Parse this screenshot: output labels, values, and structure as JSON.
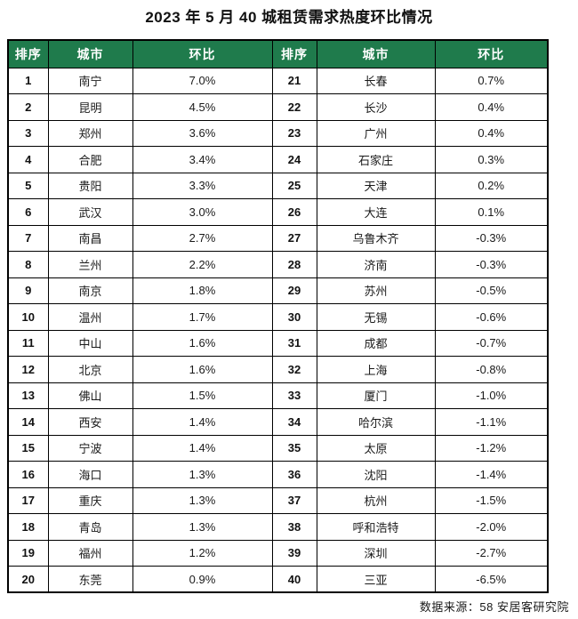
{
  "title": "2023 年 5 月 40 城租赁需求热度环比情况",
  "footer": {
    "source": "数据来源：58 安居客研究院"
  },
  "colors": {
    "header_bg": "#1f7b4c",
    "header_text": "#ffffff",
    "border": "#000000",
    "body_text": "#1a1a1a"
  },
  "table": {
    "headers": [
      "排序",
      "城市",
      "环比",
      "排序",
      "城市",
      "环比"
    ],
    "rows": [
      {
        "rank_l": "1",
        "city_l": "南宁",
        "mom_l": "7.0%",
        "rank_r": "21",
        "city_r": "长春",
        "mom_r": "0.7%"
      },
      {
        "rank_l": "2",
        "city_l": "昆明",
        "mom_l": "4.5%",
        "rank_r": "22",
        "city_r": "长沙",
        "mom_r": "0.4%"
      },
      {
        "rank_l": "3",
        "city_l": "郑州",
        "mom_l": "3.6%",
        "rank_r": "23",
        "city_r": "广州",
        "mom_r": "0.4%"
      },
      {
        "rank_l": "4",
        "city_l": "合肥",
        "mom_l": "3.4%",
        "rank_r": "24",
        "city_r": "石家庄",
        "mom_r": "0.3%"
      },
      {
        "rank_l": "5",
        "city_l": "贵阳",
        "mom_l": "3.3%",
        "rank_r": "25",
        "city_r": "天津",
        "mom_r": "0.2%"
      },
      {
        "rank_l": "6",
        "city_l": "武汉",
        "mom_l": "3.0%",
        "rank_r": "26",
        "city_r": "大连",
        "mom_r": "0.1%"
      },
      {
        "rank_l": "7",
        "city_l": "南昌",
        "mom_l": "2.7%",
        "rank_r": "27",
        "city_r": "乌鲁木齐",
        "mom_r": "-0.3%"
      },
      {
        "rank_l": "8",
        "city_l": "兰州",
        "mom_l": "2.2%",
        "rank_r": "28",
        "city_r": "济南",
        "mom_r": "-0.3%"
      },
      {
        "rank_l": "9",
        "city_l": "南京",
        "mom_l": "1.8%",
        "rank_r": "29",
        "city_r": "苏州",
        "mom_r": "-0.5%"
      },
      {
        "rank_l": "10",
        "city_l": "温州",
        "mom_l": "1.7%",
        "rank_r": "30",
        "city_r": "无锡",
        "mom_r": "-0.6%"
      },
      {
        "rank_l": "11",
        "city_l": "中山",
        "mom_l": "1.6%",
        "rank_r": "31",
        "city_r": "成都",
        "mom_r": "-0.7%"
      },
      {
        "rank_l": "12",
        "city_l": "北京",
        "mom_l": "1.6%",
        "rank_r": "32",
        "city_r": "上海",
        "mom_r": "-0.8%"
      },
      {
        "rank_l": "13",
        "city_l": "佛山",
        "mom_l": "1.5%",
        "rank_r": "33",
        "city_r": "厦门",
        "mom_r": "-1.0%"
      },
      {
        "rank_l": "14",
        "city_l": "西安",
        "mom_l": "1.4%",
        "rank_r": "34",
        "city_r": "哈尔滨",
        "mom_r": "-1.1%"
      },
      {
        "rank_l": "15",
        "city_l": "宁波",
        "mom_l": "1.4%",
        "rank_r": "35",
        "city_r": "太原",
        "mom_r": "-1.2%"
      },
      {
        "rank_l": "16",
        "city_l": "海口",
        "mom_l": "1.3%",
        "rank_r": "36",
        "city_r": "沈阳",
        "mom_r": "-1.4%"
      },
      {
        "rank_l": "17",
        "city_l": "重庆",
        "mom_l": "1.3%",
        "rank_r": "37",
        "city_r": "杭州",
        "mom_r": "-1.5%"
      },
      {
        "rank_l": "18",
        "city_l": "青岛",
        "mom_l": "1.3%",
        "rank_r": "38",
        "city_r": "呼和浩特",
        "mom_r": "-2.0%"
      },
      {
        "rank_l": "19",
        "city_l": "福州",
        "mom_l": "1.2%",
        "rank_r": "39",
        "city_r": "深圳",
        "mom_r": "-2.7%"
      },
      {
        "rank_l": "20",
        "city_l": "东莞",
        "mom_l": "0.9%",
        "rank_r": "40",
        "city_r": "三亚",
        "mom_r": "-6.5%"
      }
    ]
  },
  "chart_data": {
    "type": "table",
    "title": "2023年5月40城租赁需求热度环比情况",
    "columns": [
      "排序",
      "城市",
      "环比"
    ],
    "rows": [
      [
        1,
        "南宁",
        "7.0%"
      ],
      [
        2,
        "昆明",
        "4.5%"
      ],
      [
        3,
        "郑州",
        "3.6%"
      ],
      [
        4,
        "合肥",
        "3.4%"
      ],
      [
        5,
        "贵阳",
        "3.3%"
      ],
      [
        6,
        "武汉",
        "3.0%"
      ],
      [
        7,
        "南昌",
        "2.7%"
      ],
      [
        8,
        "兰州",
        "2.2%"
      ],
      [
        9,
        "南京",
        "1.8%"
      ],
      [
        10,
        "温州",
        "1.7%"
      ],
      [
        11,
        "中山",
        "1.6%"
      ],
      [
        12,
        "北京",
        "1.6%"
      ],
      [
        13,
        "佛山",
        "1.5%"
      ],
      [
        14,
        "西安",
        "1.4%"
      ],
      [
        15,
        "宁波",
        "1.4%"
      ],
      [
        16,
        "海口",
        "1.3%"
      ],
      [
        17,
        "重庆",
        "1.3%"
      ],
      [
        18,
        "青岛",
        "1.3%"
      ],
      [
        19,
        "福州",
        "1.2%"
      ],
      [
        20,
        "东莞",
        "0.9%"
      ],
      [
        21,
        "长春",
        "0.7%"
      ],
      [
        22,
        "长沙",
        "0.4%"
      ],
      [
        23,
        "广州",
        "0.4%"
      ],
      [
        24,
        "石家庄",
        "0.3%"
      ],
      [
        25,
        "天津",
        "0.2%"
      ],
      [
        26,
        "大连",
        "0.1%"
      ],
      [
        27,
        "乌鲁木齐",
        "-0.3%"
      ],
      [
        28,
        "济南",
        "-0.3%"
      ],
      [
        29,
        "苏州",
        "-0.5%"
      ],
      [
        30,
        "无锡",
        "-0.6%"
      ],
      [
        31,
        "成都",
        "-0.7%"
      ],
      [
        32,
        "上海",
        "-0.8%"
      ],
      [
        33,
        "厦门",
        "-1.0%"
      ],
      [
        34,
        "哈尔滨",
        "-1.1%"
      ],
      [
        35,
        "太原",
        "-1.2%"
      ],
      [
        36,
        "沈阳",
        "-1.4%"
      ],
      [
        37,
        "杭州",
        "-1.5%"
      ],
      [
        38,
        "呼和浩特",
        "-2.0%"
      ],
      [
        39,
        "深圳",
        "-2.7%"
      ],
      [
        40,
        "三亚",
        "-6.5%"
      ]
    ],
    "source": "数据来源：58安居客研究院",
    "layout": "two side-by-side halves: ranks 1-20 left, ranks 21-40 right"
  }
}
